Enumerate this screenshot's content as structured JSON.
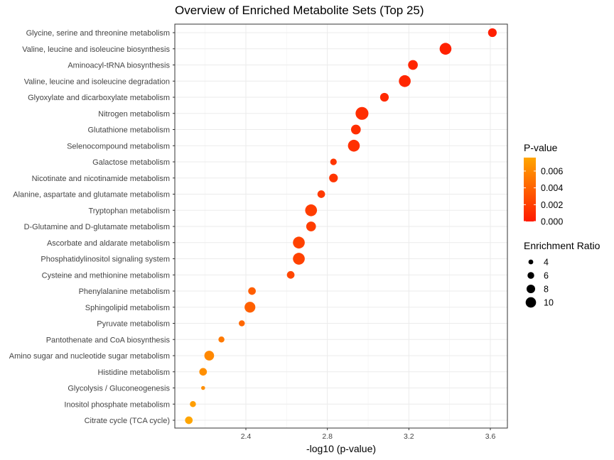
{
  "chart_data": {
    "type": "scatter",
    "title": "Overview of Enriched Metabolite Sets (Top 25)",
    "xlabel": "-log10 (p-value)",
    "ylabel": "",
    "xlim": [
      2.0,
      3.67
    ],
    "xticks": [
      "2.4",
      "2.8",
      "3.2",
      "3.6"
    ],
    "grid": true,
    "points": [
      {
        "label": "Glycine, serine and threonine metabolism",
        "x": 3.61,
        "p_value": 0.00025,
        "ratio": 7.0
      },
      {
        "label": "Valine, leucine and isoleucine biosynthesis",
        "x": 3.38,
        "p_value": 0.0004,
        "ratio": 10.0
      },
      {
        "label": "Aminoacyl-tRNA biosynthesis",
        "x": 3.22,
        "p_value": 0.0006,
        "ratio": 8.0
      },
      {
        "label": "Valine, leucine and isoleucine degradation",
        "x": 3.18,
        "p_value": 0.00065,
        "ratio": 10.0
      },
      {
        "label": "Glyoxylate and dicarboxylate metabolism",
        "x": 3.08,
        "p_value": 0.0008,
        "ratio": 7.0
      },
      {
        "label": "Nitrogen metabolism",
        "x": 2.97,
        "p_value": 0.0011,
        "ratio": 11.0
      },
      {
        "label": "Glutathione metabolism",
        "x": 2.94,
        "p_value": 0.0011,
        "ratio": 8.0
      },
      {
        "label": "Selenocompound metabolism",
        "x": 2.93,
        "p_value": 0.0012,
        "ratio": 10.0
      },
      {
        "label": "Galactose metabolism",
        "x": 2.83,
        "p_value": 0.0015,
        "ratio": 5.0
      },
      {
        "label": "Nicotinate and nicotinamide metabolism",
        "x": 2.83,
        "p_value": 0.0015,
        "ratio": 7.0
      },
      {
        "label": "Alanine, aspartate and glutamate metabolism",
        "x": 2.77,
        "p_value": 0.0017,
        "ratio": 6.0
      },
      {
        "label": "Tryptophan metabolism",
        "x": 2.72,
        "p_value": 0.0019,
        "ratio": 10.0
      },
      {
        "label": "D-Glutamine and D-glutamate metabolism",
        "x": 2.72,
        "p_value": 0.0019,
        "ratio": 8.0
      },
      {
        "label": "Ascorbate and aldarate metabolism",
        "x": 2.66,
        "p_value": 0.0022,
        "ratio": 10.0
      },
      {
        "label": "Phosphatidylinositol signaling system",
        "x": 2.66,
        "p_value": 0.0022,
        "ratio": 10.0
      },
      {
        "label": "Cysteine and methionine metabolism",
        "x": 2.62,
        "p_value": 0.0024,
        "ratio": 6.0
      },
      {
        "label": "Phenylalanine metabolism",
        "x": 2.43,
        "p_value": 0.0037,
        "ratio": 6.0
      },
      {
        "label": "Sphingolipid metabolism",
        "x": 2.42,
        "p_value": 0.0038,
        "ratio": 9.0
      },
      {
        "label": "Pyruvate metabolism",
        "x": 2.38,
        "p_value": 0.0042,
        "ratio": 4.5
      },
      {
        "label": "Pantothenate and CoA biosynthesis",
        "x": 2.28,
        "p_value": 0.0052,
        "ratio": 4.5
      },
      {
        "label": "Amino sugar and nucleotide sugar metabolism",
        "x": 2.22,
        "p_value": 0.006,
        "ratio": 8.0
      },
      {
        "label": "Histidine metabolism",
        "x": 2.19,
        "p_value": 0.0064,
        "ratio": 6.0
      },
      {
        "label": "Glycolysis / Gluconeogenesis",
        "x": 2.19,
        "p_value": 0.0064,
        "ratio": 2.5
      },
      {
        "label": "Inositol phosphate metabolism",
        "x": 2.14,
        "p_value": 0.0072,
        "ratio": 4.5
      },
      {
        "label": "Citrate cycle (TCA cycle)",
        "x": 2.12,
        "p_value": 0.0076,
        "ratio": 6.0
      }
    ],
    "legend": {
      "color": {
        "title": "P-value",
        "labels": [
          "0.006",
          "0.004",
          "0.002",
          "0.000"
        ],
        "values": [
          0.006,
          0.004,
          0.002,
          0.0
        ],
        "range": [
          0.0,
          0.0076
        ],
        "low_color": "#ff1a00",
        "high_color": "#ffa500"
      },
      "size": {
        "title": "Enrichment Ratio",
        "labels": [
          "4",
          "6",
          "8",
          "10"
        ],
        "values": [
          4,
          6,
          8,
          10
        ]
      },
      "placement": "right"
    }
  }
}
